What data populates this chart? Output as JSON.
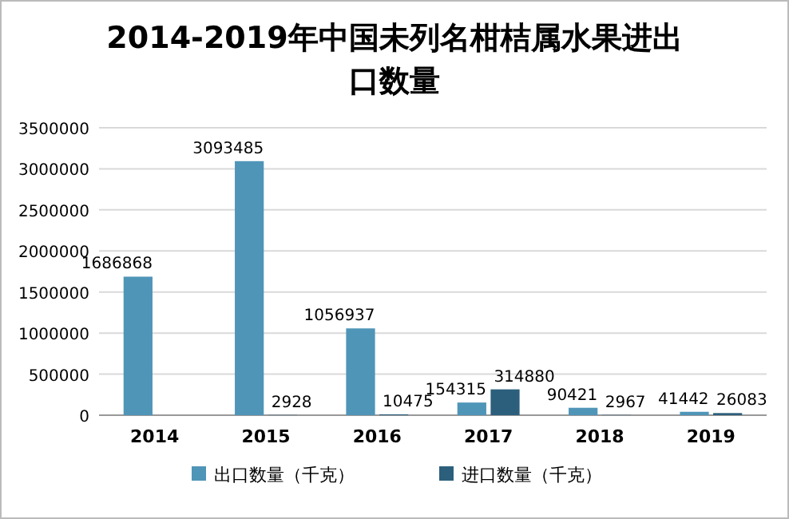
{
  "chart_data": {
    "type": "bar",
    "title": "2014-2019年中国未列名柑桔属水果进出口数量",
    "categories": [
      "2014",
      "2015",
      "2016",
      "2017",
      "2018",
      "2019"
    ],
    "series": [
      {
        "name": "出口数量（千克）",
        "color": "#4f95b8",
        "values": [
          1686868,
          3093485,
          1056937,
          154315,
          90421,
          41442
        ]
      },
      {
        "name": "进口数量（千克）",
        "color": "#2c5f7c",
        "values": [
          null,
          2928,
          10475,
          314880,
          2967,
          26083
        ]
      }
    ],
    "ylim": [
      0,
      3500000
    ],
    "yticks": [
      0,
      500000,
      1000000,
      1500000,
      2000000,
      2500000,
      3000000,
      3500000
    ],
    "grid": "y",
    "legend": "bottom",
    "data_labels": true
  }
}
